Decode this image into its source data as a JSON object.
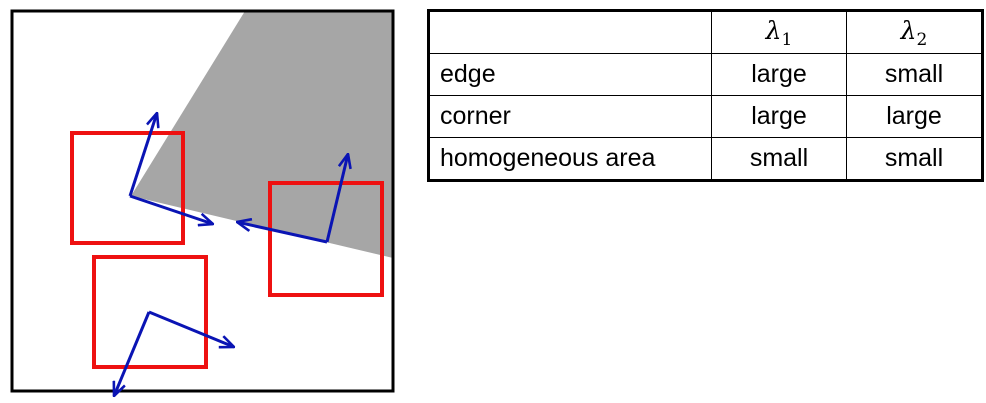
{
  "colors": {
    "frame": "#000000",
    "shaded_region": "#a6a6a6",
    "window": "#ee1111",
    "arrow": "#0a14b4"
  },
  "table": {
    "headers": [
      "",
      "λ",
      "λ"
    ],
    "header_subscripts": [
      "",
      "1",
      "2"
    ],
    "rows": [
      {
        "label": "edge",
        "lambda1": "large",
        "lambda2": "small"
      },
      {
        "label": "corner",
        "lambda1": "large",
        "lambda2": "large"
      },
      {
        "label": "homogeneous area",
        "lambda1": "small",
        "lambda2": "small"
      }
    ]
  }
}
